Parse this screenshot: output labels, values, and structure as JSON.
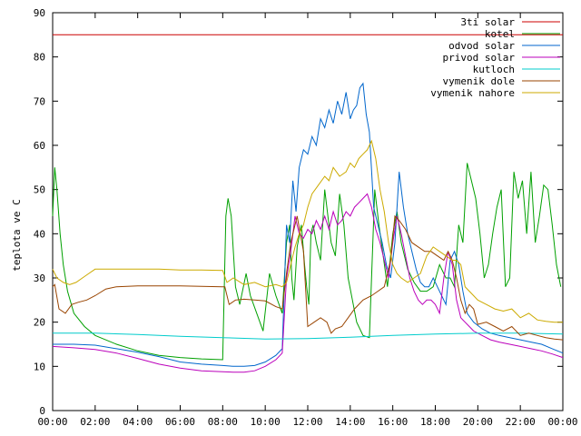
{
  "chart_data": {
    "type": "line",
    "title": "",
    "xlabel": "",
    "ylabel": "teplota ve C",
    "xlim": [
      "00:00",
      "24:00"
    ],
    "ylim": [
      0,
      90
    ],
    "x_ticks": [
      "00:00",
      "02:00",
      "04:00",
      "06:00",
      "08:00",
      "10:00",
      "12:00",
      "14:00",
      "16:00",
      "18:00",
      "20:00",
      "22:00",
      "00:00"
    ],
    "y_ticks": [
      0,
      10,
      20,
      30,
      40,
      50,
      60,
      70,
      80,
      90
    ],
    "grid": false,
    "legend_position": "top-right",
    "series": [
      {
        "name": "3ti solar",
        "color": "#cc0000",
        "x": [
          0,
          24
        ],
        "y": [
          85,
          85
        ]
      },
      {
        "name": "kotel",
        "color": "#00a000",
        "x": [
          0,
          0.1,
          0.2,
          0.35,
          0.5,
          0.7,
          1,
          1.5,
          2,
          3,
          4,
          5,
          6,
          7,
          8,
          8.15,
          8.25,
          8.4,
          8.6,
          8.8,
          9.1,
          9.3,
          9.6,
          9.9,
          10.2,
          10.5,
          10.8,
          11.0,
          11.15,
          11.25,
          11.35,
          11.5,
          11.7,
          11.85,
          11.95,
          12.05,
          12.15,
          12.25,
          12.4,
          12.6,
          12.8,
          12.95,
          13.1,
          13.3,
          13.5,
          13.7,
          13.9,
          14.1,
          14.3,
          14.6,
          14.9,
          15.15,
          15.35,
          15.55,
          15.75,
          16.0,
          16.2,
          16.4,
          16.7,
          17.0,
          17.3,
          17.6,
          17.9,
          18.2,
          18.5,
          18.7,
          18.9,
          19.1,
          19.3,
          19.5,
          19.7,
          19.9,
          20.1,
          20.3,
          20.5,
          20.7,
          20.9,
          21.1,
          21.3,
          21.5,
          21.7,
          21.9,
          22.1,
          22.3,
          22.5,
          22.7,
          22.9,
          23.1,
          23.3,
          23.5,
          23.7,
          23.9
        ],
        "y": [
          44,
          55,
          50,
          40,
          33,
          27,
          22,
          19,
          17,
          15,
          13.5,
          12.5,
          12,
          11.7,
          11.5,
          44,
          48,
          44,
          28,
          24,
          31,
          26,
          22,
          18,
          31,
          26,
          22,
          38,
          42,
          30,
          25,
          37,
          42,
          33,
          28,
          24,
          40,
          42,
          38,
          34,
          50,
          44,
          38,
          35,
          49,
          42,
          30,
          25,
          20,
          17,
          16.5,
          50,
          42,
          35,
          28,
          40,
          45,
          38,
          32,
          29,
          27,
          27,
          28,
          33,
          30,
          30,
          28,
          42,
          38,
          56,
          52,
          48,
          40,
          30,
          33,
          40,
          46,
          50,
          28,
          30,
          54,
          48,
          52,
          40,
          54,
          38,
          44,
          51,
          50,
          42,
          33,
          28
        ]
      },
      {
        "name": "odvod solar",
        "color": "#0066cc",
        "x": [
          0,
          1,
          2,
          3,
          4,
          5,
          6,
          7,
          8,
          8.5,
          9,
          9.5,
          10,
          10.5,
          10.8,
          11.0,
          11.15,
          11.3,
          11.45,
          11.6,
          11.8,
          12.0,
          12.2,
          12.4,
          12.6,
          12.8,
          13.0,
          13.2,
          13.4,
          13.6,
          13.8,
          14.0,
          14.15,
          14.3,
          14.45,
          14.6,
          14.75,
          14.9,
          15.1,
          15.3,
          15.5,
          15.7,
          15.9,
          16.1,
          16.3,
          16.5,
          16.7,
          16.9,
          17.1,
          17.3,
          17.5,
          17.7,
          17.9,
          18.1,
          18.3,
          18.5,
          18.7,
          18.9,
          19.1,
          19.3,
          19.5,
          19.8,
          20.2,
          20.6,
          21,
          21.5,
          22,
          22.5,
          23,
          23.5,
          24
        ],
        "y": [
          15,
          15,
          14.8,
          14,
          13.2,
          12.2,
          11,
          10.5,
          10.2,
          10,
          10,
          10.2,
          11,
          12.5,
          14,
          42,
          38,
          52,
          45,
          55,
          59,
          58,
          62,
          60,
          66,
          64,
          68,
          65,
          70,
          67,
          72,
          66,
          68,
          69,
          73,
          74,
          67,
          63,
          46,
          42,
          38,
          33,
          30,
          38,
          54,
          46,
          40,
          36,
          32,
          29,
          28,
          28,
          30,
          28,
          26,
          24,
          34,
          36,
          33,
          27,
          22,
          20,
          18.5,
          17.5,
          17,
          16.5,
          16,
          15.5,
          15,
          14,
          13
        ]
      },
      {
        "name": "privod solar",
        "color": "#bb00bb",
        "x": [
          0,
          1,
          2,
          3,
          4,
          5,
          6,
          7,
          8,
          8.5,
          9,
          9.5,
          10,
          10.5,
          10.8,
          11.0,
          11.2,
          11.4,
          11.6,
          11.8,
          12.0,
          12.2,
          12.4,
          12.6,
          12.8,
          13.0,
          13.2,
          13.4,
          13.6,
          13.8,
          14.0,
          14.2,
          14.4,
          14.6,
          14.8,
          15.0,
          15.2,
          15.4,
          15.6,
          15.8,
          16.0,
          16.2,
          16.4,
          16.6,
          16.8,
          17.0,
          17.2,
          17.4,
          17.6,
          17.8,
          18.0,
          18.2,
          18.4,
          18.6,
          18.8,
          19.0,
          19.2,
          19.4,
          19.6,
          19.8,
          20.2,
          20.6,
          21,
          21.5,
          22,
          22.5,
          23,
          23.5,
          24
        ],
        "y": [
          14.5,
          14.2,
          13.8,
          13,
          11.8,
          10.5,
          9.6,
          9,
          8.8,
          8.7,
          8.7,
          9,
          10,
          11.5,
          13,
          30,
          36,
          44,
          40,
          39,
          41,
          40,
          43,
          41,
          44,
          41,
          45,
          42,
          43,
          45,
          44,
          46,
          47,
          48,
          49,
          46,
          41,
          38,
          34,
          30,
          38,
          44,
          40,
          35,
          30,
          27,
          25,
          24,
          25,
          25,
          24,
          22,
          30,
          36,
          33,
          25,
          21,
          20,
          19,
          18,
          17,
          16,
          15.5,
          15,
          14.5,
          14,
          13.5,
          12.8,
          12
        ]
      },
      {
        "name": "kutloch",
        "color": "#00cccc",
        "x": [
          0,
          2,
          4,
          6,
          8,
          10,
          12,
          14,
          16,
          18,
          20,
          22,
          24
        ],
        "y": [
          17.5,
          17.5,
          17.2,
          16.8,
          16.5,
          16.2,
          16.3,
          16.6,
          17,
          17.3,
          17.5,
          17.5,
          17.3
        ]
      },
      {
        "name": "vymenik dole",
        "color": "#994400",
        "x": [
          0,
          0.1,
          0.3,
          0.6,
          0.9,
          1.2,
          1.6,
          2,
          2.5,
          3,
          4,
          5,
          6,
          7,
          8,
          8.1,
          8.3,
          8.6,
          9,
          9.5,
          10,
          10.5,
          10.8,
          11.0,
          11.2,
          11.5,
          11.8,
          12.0,
          12.3,
          12.6,
          12.9,
          13.1,
          13.3,
          13.6,
          13.9,
          14.2,
          14.6,
          15.0,
          15.3,
          15.6,
          15.9,
          16.1,
          16.3,
          16.6,
          16.9,
          17.2,
          17.5,
          17.8,
          18.1,
          18.4,
          18.6,
          18.8,
          19.0,
          19.2,
          19.4,
          19.6,
          19.8,
          20.0,
          20.4,
          20.8,
          21.2,
          21.6,
          22.0,
          22.4,
          22.8,
          23.2,
          23.6,
          24
        ],
        "y": [
          28,
          28.5,
          23,
          22,
          24,
          24.5,
          25,
          26,
          27.5,
          28,
          28.2,
          28.2,
          28.2,
          28.1,
          28,
          28,
          24,
          25,
          25.2,
          25,
          24.8,
          23.5,
          23,
          31,
          38,
          44,
          36,
          19,
          20,
          21,
          20,
          17.5,
          18.5,
          19,
          21,
          23,
          25,
          26,
          27,
          28,
          34,
          44,
          43,
          41,
          38,
          37,
          36,
          36,
          35,
          34,
          36,
          34,
          30,
          25,
          22,
          24,
          23,
          19.5,
          20,
          19,
          18,
          19,
          17,
          17.5,
          17,
          16.5,
          16.2,
          16
        ]
      },
      {
        "name": "vymenik nahore",
        "color": "#ccaa00",
        "x": [
          0,
          0.2,
          0.5,
          0.8,
          1.1,
          1.4,
          1.7,
          2,
          2.5,
          3,
          4,
          5,
          6,
          7,
          8,
          8.2,
          8.5,
          9,
          9.5,
          10,
          10.5,
          10.8,
          11.0,
          11.2,
          11.4,
          11.6,
          11.8,
          12.0,
          12.2,
          12.5,
          12.8,
          13.0,
          13.2,
          13.5,
          13.8,
          14.0,
          14.2,
          14.4,
          14.6,
          14.8,
          15.0,
          15.2,
          15.4,
          15.6,
          15.8,
          16.0,
          16.2,
          16.4,
          16.7,
          17.0,
          17.3,
          17.6,
          17.9,
          18.2,
          18.5,
          18.8,
          19.0,
          19.2,
          19.4,
          19.6,
          19.8,
          20.0,
          20.4,
          20.8,
          21.2,
          21.6,
          22.0,
          22.4,
          22.8,
          23.2,
          23.6,
          24
        ],
        "y": [
          32,
          30,
          29,
          28.5,
          29,
          30,
          31,
          32,
          32,
          32,
          32,
          32,
          31.8,
          31.8,
          31.7,
          29,
          30,
          28.5,
          29,
          28,
          28.5,
          28,
          29,
          33,
          37,
          40,
          42,
          46,
          49,
          51,
          53,
          52,
          55,
          53,
          54,
          56,
          55,
          57,
          58,
          59,
          61,
          57,
          50,
          45,
          38,
          33,
          31,
          30,
          29,
          30,
          31,
          35,
          37,
          36,
          35,
          34,
          34,
          33,
          28,
          27,
          26,
          25,
          24,
          23,
          22.5,
          23,
          21,
          22,
          20.5,
          20.2,
          20,
          20
        ]
      }
    ]
  }
}
